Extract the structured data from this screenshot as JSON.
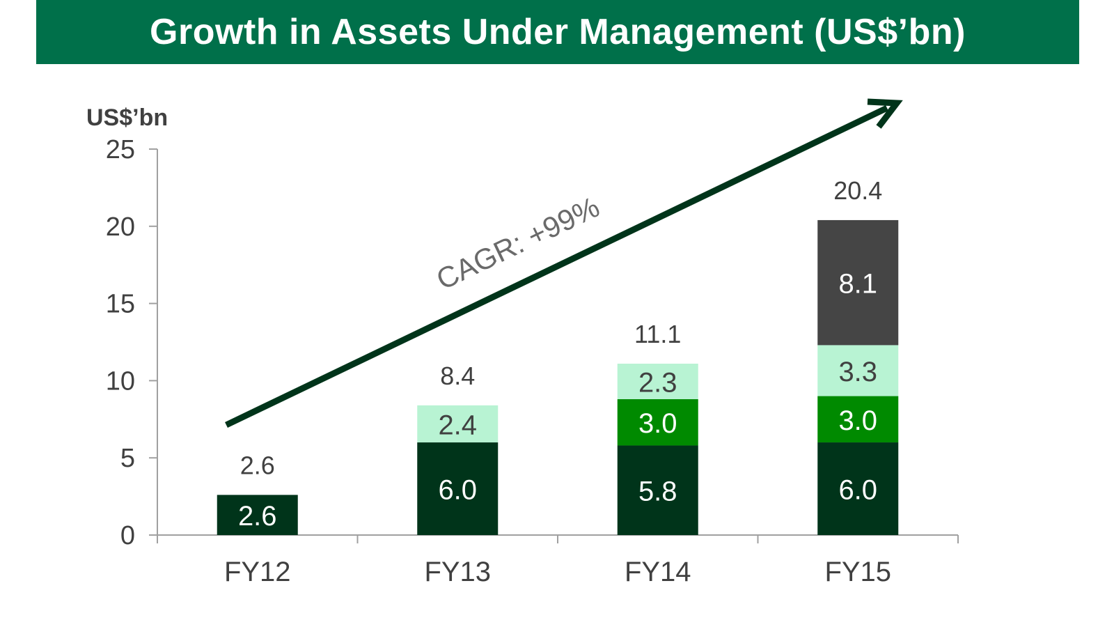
{
  "title": "Growth in Assets Under Management (US$’bn)",
  "colors": {
    "title_bg": "#00704a",
    "title_text": "#ffffff",
    "segment_1": "#00341a",
    "segment_2": "#008a00",
    "segment_3": "#b8f3d3",
    "segment_4": "#454545",
    "arrow": "#00341a",
    "axis": "#a0a0a0",
    "label_dark": "#404040"
  },
  "chart_data": {
    "type": "bar",
    "stacked": true,
    "title": "Growth in Assets Under Management (US$’bn)",
    "ylabel": "US$’bn",
    "xlabel": "",
    "ylim": [
      0,
      25
    ],
    "yticks": [
      "0",
      "5",
      "10",
      "15",
      "20",
      "25"
    ],
    "ytick_values": [
      0,
      5,
      10,
      15,
      20,
      25
    ],
    "grid": false,
    "legend": "none",
    "categories": [
      "FY12",
      "FY13",
      "FY14",
      "FY15"
    ],
    "series": [
      {
        "values": [
          2.6,
          6.0,
          5.8,
          6.0
        ],
        "labels": [
          "2.6",
          "6.0",
          "5.8",
          "6.0"
        ],
        "color": "#00341a",
        "label_color": "#ffffff"
      },
      {
        "values": [
          0,
          0,
          3.0,
          3.0
        ],
        "labels": [
          "",
          "",
          "3.0",
          "3.0"
        ],
        "color": "#008a00",
        "label_color": "#ffffff"
      },
      {
        "values": [
          0,
          2.4,
          2.3,
          3.3
        ],
        "labels": [
          "",
          "2.4",
          "2.3",
          "3.3"
        ],
        "color": "#b8f3d3",
        "label_color": "#404040"
      },
      {
        "values": [
          0,
          0,
          0,
          8.1
        ],
        "labels": [
          "",
          "",
          "",
          "8.1"
        ],
        "color": "#454545",
        "label_color": "#ffffff"
      }
    ],
    "totals": [
      "2.6",
      "8.4",
      "11.1",
      "20.4"
    ],
    "total_values": [
      2.6,
      8.4,
      11.1,
      20.4
    ],
    "annotations": [
      {
        "text": "CAGR: +99%",
        "kind": "arrow",
        "from_category": "FY12",
        "to_category": "FY15"
      }
    ]
  }
}
